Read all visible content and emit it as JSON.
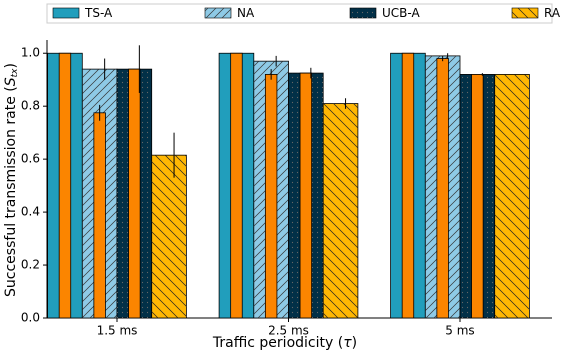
{
  "chart_data": {
    "type": "bar",
    "categories": [
      "1.5 ms",
      "2.5 ms",
      "5 ms"
    ],
    "xlabel": {
      "text": "Traffic periodicity (",
      "symbol": "τ",
      "close": ")"
    },
    "ylabel": {
      "text": "Successful transmission rate (",
      "symbol": "S",
      "subscript": "tx",
      "close": ")"
    },
    "ylim": [
      0,
      1.05
    ],
    "yticks": [
      {
        "value": 0,
        "label": "0.0"
      },
      0.2,
      0.4,
      0.6,
      0.8,
      {
        "value": 1,
        "label": "1.0"
      }
    ],
    "grid": false,
    "legend": "top",
    "series": [
      {
        "name": "TS-A",
        "color": "#219ebc",
        "hatch": "none",
        "values": [
          1.0,
          1.0,
          1.0
        ],
        "errors": [
          null,
          null,
          null
        ]
      },
      {
        "name": "NA",
        "color": "#8ecae6",
        "hatch": "/",
        "values": [
          0.94,
          0.97,
          0.99
        ],
        "errors": [
          0.04,
          0.02,
          0.01
        ]
      },
      {
        "name": "UCB-A",
        "color": "#023047",
        "hatch": ".",
        "values": [
          0.94,
          0.925,
          0.92
        ],
        "errors": [
          0.09,
          0.02,
          0.005
        ]
      },
      {
        "name": "RA",
        "color": "#ffb703",
        "hatch": "\\",
        "values": [
          0.615,
          0.81,
          0.92
        ],
        "errors": [
          0.085,
          0.02,
          null
        ]
      }
    ],
    "overlay_series": [
      {
        "color": "#fb8500",
        "values": [
          1.0,
          1.0,
          1.0
        ],
        "errors": [
          null,
          null,
          null
        ]
      },
      {
        "color": "#fb8500",
        "values": [
          0.775,
          0.92,
          0.98
        ],
        "errors": [
          0.03,
          0.02,
          0.01
        ]
      },
      {
        "color": "#fb8500",
        "values": [
          0.94,
          0.925,
          0.92
        ],
        "errors": [
          null,
          null,
          null
        ]
      }
    ]
  }
}
